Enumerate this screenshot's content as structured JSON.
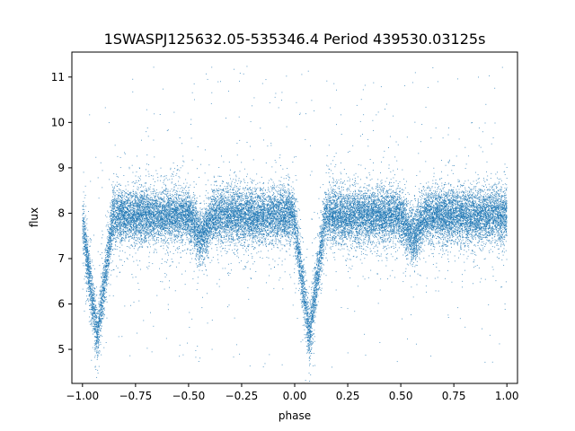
{
  "chart_data": {
    "type": "scatter",
    "title": "1SWASPJ125632.05-535346.4 Period 439530.03125s",
    "xlabel": "phase",
    "ylabel": "flux",
    "xlim": [
      -1.05,
      1.05
    ],
    "ylim": [
      4.25,
      11.55
    ],
    "xticks": [
      -1.0,
      -0.75,
      -0.5,
      -0.25,
      0.0,
      0.25,
      0.5,
      0.75,
      1.0
    ],
    "xtick_labels": [
      "−1.00",
      "−0.75",
      "−0.50",
      "−0.25",
      "0.00",
      "0.25",
      "0.50",
      "0.75",
      "1.00"
    ],
    "yticks": [
      5,
      6,
      7,
      8,
      9,
      10,
      11
    ],
    "ytick_labels": [
      "5",
      "6",
      "7",
      "8",
      "9",
      "10",
      "11"
    ],
    "grid": false,
    "legend": "none",
    "marker_color": "#1f77b4",
    "light_curve": {
      "phase_range": [
        -1.0,
        1.0
      ],
      "period_in_phase": 1.0,
      "baseline_flux": 7.95,
      "primary_eclipse": {
        "phase": -0.93,
        "min_flux": 5.3,
        "half_width": 0.075
      },
      "primary_eclipse_repeat": {
        "phase": 0.07,
        "min_flux": 5.3,
        "half_width": 0.075
      },
      "secondary_eclipse": {
        "phase": -0.44,
        "min_flux": 7.45,
        "half_width": 0.06
      },
      "secondary_eclipse_repeat": {
        "phase": 0.56,
        "min_flux": 7.45,
        "half_width": 0.06
      },
      "scatter_sigma": 0.28,
      "outlier_range": [
        4.6,
        11.3
      ],
      "point_count": 26000
    }
  }
}
